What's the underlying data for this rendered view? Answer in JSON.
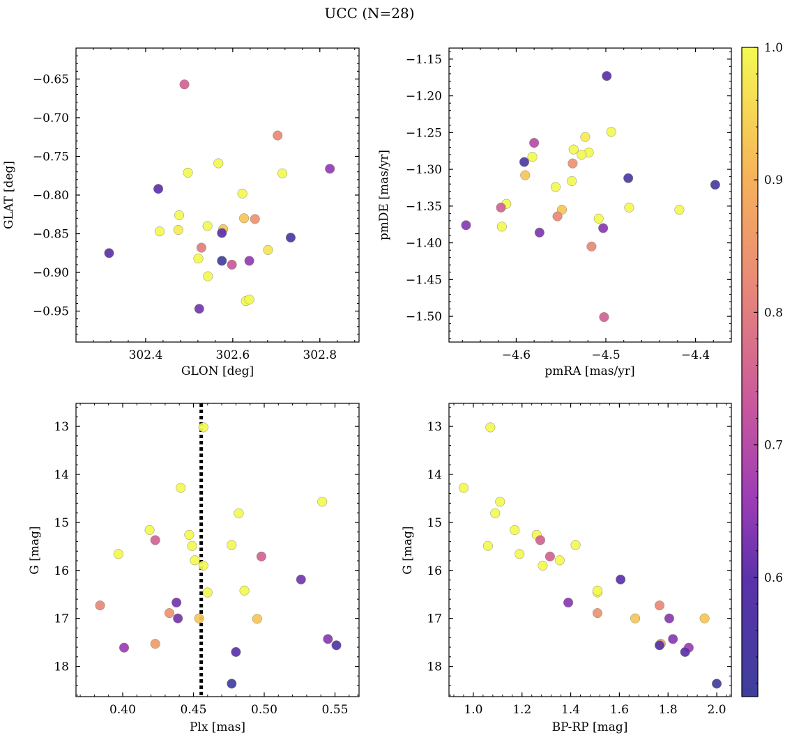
{
  "figure": {
    "title": "UCC (N=28)"
  },
  "colorbar": {
    "ticks": [
      0.6,
      0.7,
      0.8,
      0.9,
      1.0
    ],
    "tick_labels": [
      "0.6",
      "0.7",
      "0.8",
      "0.9",
      "1.0"
    ],
    "range": [
      0.51,
      1.0
    ],
    "colormap": "plasma"
  },
  "chart_data": [
    {
      "type": "scatter",
      "xlabel": "GLON [deg]",
      "ylabel": "GLAT [deg]",
      "xlim": [
        302.24,
        302.89
      ],
      "ylim": [
        -0.99,
        -0.61
      ],
      "y_inverted": false,
      "xticks": [
        302.4,
        302.6,
        302.8
      ],
      "xtick_labels": [
        "302.4",
        "302.6",
        "302.8"
      ],
      "yticks": [
        -0.95,
        -0.9,
        -0.85,
        -0.8,
        -0.75,
        -0.7,
        -0.65
      ],
      "ytick_labels": [
        "−0.95",
        "−0.90",
        "−0.85",
        "−0.80",
        "−0.75",
        "−0.70",
        "−0.65"
      ],
      "x": [
        302.489,
        302.703,
        302.823,
        302.316,
        302.429,
        302.497,
        302.567,
        302.622,
        302.714,
        302.477,
        302.432,
        302.475,
        302.542,
        302.578,
        302.626,
        302.651,
        302.575,
        302.733,
        302.528,
        302.681,
        302.521,
        302.575,
        302.638,
        302.598,
        302.543,
        302.523,
        302.63,
        302.638
      ],
      "y": [
        -0.657,
        -0.723,
        -0.766,
        -0.875,
        -0.792,
        -0.771,
        -0.759,
        -0.798,
        -0.772,
        -0.826,
        -0.847,
        -0.845,
        -0.84,
        -0.844,
        -0.83,
        -0.831,
        -0.849,
        -0.855,
        -0.868,
        -0.871,
        -0.882,
        -0.885,
        -0.885,
        -0.89,
        -0.905,
        -0.947,
        -0.937,
        -0.935
      ],
      "c": [
        0.75,
        0.82,
        0.65,
        0.6,
        0.6,
        1.0,
        1.0,
        1.0,
        1.0,
        1.0,
        1.0,
        0.98,
        1.0,
        0.93,
        0.93,
        0.84,
        0.6,
        0.56,
        0.8,
        0.97,
        1.0,
        0.52,
        0.65,
        0.73,
        1.0,
        0.62,
        1.0,
        1.0
      ]
    },
    {
      "type": "scatter",
      "xlabel": "pmRA [mas/yr]",
      "ylabel": "pmDE [mas/yr]",
      "xlim": [
        -4.675,
        -4.36
      ],
      "ylim": [
        -1.535,
        -1.135
      ],
      "y_inverted": false,
      "xticks": [
        -4.6,
        -4.5,
        -4.4
      ],
      "xtick_labels": [
        "−4.6",
        "−4.5",
        "−4.4"
      ],
      "yticks": [
        -1.5,
        -1.45,
        -1.4,
        -1.35,
        -1.3,
        -1.25,
        -1.2,
        -1.15
      ],
      "ytick_labels": [
        "−1.50",
        "−1.45",
        "−1.40",
        "−1.35",
        "−1.30",
        "−1.25",
        "−1.20",
        "−1.15"
      ],
      "x": [
        -4.499,
        -4.494,
        -4.523,
        -4.58,
        -4.536,
        -4.519,
        -4.527,
        -4.582,
        -4.591,
        -4.537,
        -4.59,
        -4.475,
        -4.378,
        -4.556,
        -4.611,
        -4.617,
        -4.549,
        -4.474,
        -4.418,
        -4.554,
        -4.508,
        -4.656,
        -4.616,
        -4.574,
        -4.503,
        -4.516,
        -4.502,
        -4.538
      ],
      "y": [
        -1.173,
        -1.249,
        -1.256,
        -1.264,
        -1.273,
        -1.277,
        -1.28,
        -1.283,
        -1.29,
        -1.292,
        -1.308,
        -1.312,
        -1.321,
        -1.324,
        -1.347,
        -1.352,
        -1.355,
        -1.352,
        -1.355,
        -1.364,
        -1.367,
        -1.376,
        -1.378,
        -1.386,
        -1.38,
        -1.405,
        -1.501,
        -1.316
      ],
      "c": [
        0.6,
        1.0,
        0.98,
        0.7,
        1.0,
        1.0,
        1.0,
        1.0,
        0.56,
        0.84,
        0.93,
        0.56,
        0.54,
        1.0,
        1.0,
        0.75,
        0.93,
        1.0,
        1.0,
        0.82,
        1.0,
        0.64,
        1.0,
        0.63,
        0.64,
        0.82,
        0.75,
        1.0
      ]
    },
    {
      "type": "scatter",
      "xlabel": "Plx [mas]",
      "ylabel": "G [mag]",
      "xlim": [
        0.367,
        0.567
      ],
      "ylim": [
        18.63,
        12.52
      ],
      "y_inverted": true,
      "vline": {
        "x": 0.4555,
        "style": "dotted"
      },
      "xticks": [
        0.4,
        0.45,
        0.5,
        0.55
      ],
      "xtick_labels": [
        "0.40",
        "0.45",
        "0.50",
        "0.55"
      ],
      "yticks": [
        13,
        14,
        15,
        16,
        17,
        18
      ],
      "ytick_labels": [
        "13",
        "14",
        "15",
        "16",
        "17",
        "18"
      ],
      "x": [
        0.457,
        0.441,
        0.541,
        0.482,
        0.419,
        0.447,
        0.423,
        0.449,
        0.477,
        0.397,
        0.498,
        0.451,
        0.457,
        0.46,
        0.486,
        0.526,
        0.438,
        0.384,
        0.433,
        0.439,
        0.454,
        0.495,
        0.423,
        0.545,
        0.551,
        0.401,
        0.48,
        0.477
      ],
      "y": [
        13.02,
        14.28,
        14.57,
        14.81,
        15.16,
        15.26,
        15.37,
        15.49,
        15.47,
        15.66,
        15.71,
        15.79,
        15.9,
        16.46,
        16.42,
        16.19,
        16.67,
        16.73,
        16.89,
        17.0,
        17.0,
        17.01,
        17.53,
        17.43,
        17.56,
        17.61,
        17.7,
        18.36
      ],
      "c": [
        1.0,
        1.0,
        1.0,
        1.0,
        1.0,
        1.0,
        0.75,
        1.0,
        1.0,
        1.0,
        0.75,
        1.0,
        1.0,
        1.0,
        1.0,
        0.62,
        0.62,
        0.82,
        0.84,
        0.62,
        0.93,
        0.93,
        0.86,
        0.64,
        0.58,
        0.66,
        0.6,
        0.52
      ]
    },
    {
      "type": "scatter",
      "xlabel": "BP-RP [mag]",
      "ylabel": "G [mag]",
      "xlim": [
        0.9,
        2.06
      ],
      "ylim": [
        18.63,
        12.52
      ],
      "y_inverted": true,
      "xticks": [
        1.0,
        1.2,
        1.4,
        1.6,
        1.8,
        2.0
      ],
      "xtick_labels": [
        "1.0",
        "1.2",
        "1.4",
        "1.6",
        "1.8",
        "2.0"
      ],
      "yticks": [
        13,
        14,
        15,
        16,
        17,
        18
      ],
      "ytick_labels": [
        "13",
        "14",
        "15",
        "16",
        "17",
        "18"
      ],
      "x": [
        1.07,
        0.96,
        1.11,
        1.09,
        1.17,
        1.26,
        1.275,
        1.06,
        1.42,
        1.19,
        1.315,
        1.355,
        1.285,
        1.51,
        1.51,
        1.605,
        1.39,
        1.765,
        1.51,
        1.805,
        1.665,
        1.95,
        1.77,
        1.82,
        1.765,
        1.885,
        1.87,
        2.0
      ],
      "y": [
        13.02,
        14.28,
        14.57,
        14.81,
        15.16,
        15.26,
        15.37,
        15.49,
        15.47,
        15.66,
        15.71,
        15.79,
        15.9,
        16.46,
        16.42,
        16.19,
        16.67,
        16.73,
        16.89,
        17.0,
        17.0,
        17.0,
        17.53,
        17.43,
        17.56,
        17.61,
        17.7,
        18.36
      ],
      "c": [
        1.0,
        1.0,
        1.0,
        1.0,
        1.0,
        1.0,
        0.75,
        1.0,
        1.0,
        1.0,
        0.75,
        1.0,
        1.0,
        1.0,
        1.0,
        0.6,
        0.64,
        0.82,
        0.84,
        0.64,
        0.93,
        0.93,
        0.86,
        0.64,
        0.58,
        0.66,
        0.6,
        0.52
      ]
    }
  ]
}
